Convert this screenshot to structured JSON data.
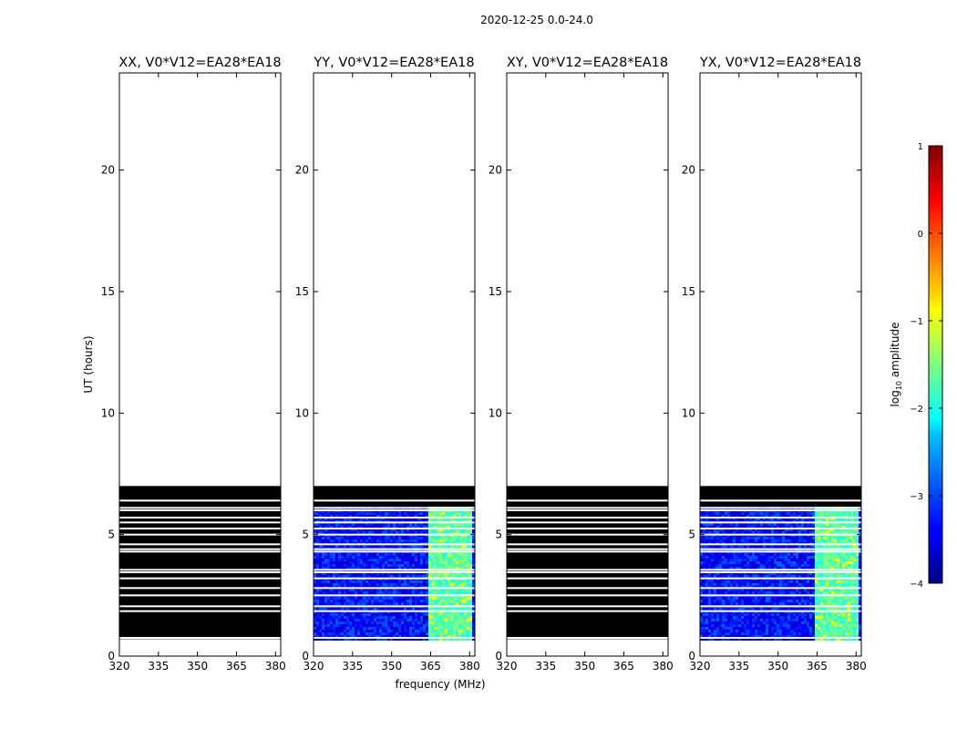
{
  "suptitle": "2020-12-25 0.0-24.0",
  "ylabel": "UT (hours)",
  "xlabel": "frequency (MHz)",
  "colorbar": {
    "label_prefix": "log",
    "label_sub": "10",
    "label_suffix": " amplitude",
    "ticks": [
      1,
      0,
      -1,
      -2,
      -3,
      -4
    ],
    "tick_labels": [
      "1",
      "0",
      "−1",
      "−2",
      "−3",
      "−4"
    ],
    "range": [
      -4,
      1
    ],
    "colormap": "jet"
  },
  "chart_data": [
    {
      "type": "heatmap",
      "title": "XX, V0*V12=EA28*EA18",
      "xlim": [
        320,
        382
      ],
      "ylim": [
        0,
        24
      ],
      "xticks": [
        320,
        335,
        350,
        365,
        380
      ],
      "yticks": [
        0,
        5,
        10,
        15,
        20
      ],
      "data_extent_hours": [
        0.7,
        7.0
      ],
      "fill": "masked-black",
      "gap_rows_hours": [
        0.75,
        1.85,
        2.05,
        2.5,
        2.8,
        3.2,
        3.45,
        3.55,
        4.3,
        4.4,
        4.6,
        5.0,
        5.25,
        5.5,
        5.7,
        6.0,
        6.1,
        6.4
      ]
    },
    {
      "type": "heatmap",
      "title": "YY, V0*V12=EA28*EA18",
      "xlim": [
        320,
        382
      ],
      "ylim": [
        0,
        24
      ],
      "xticks": [
        320,
        335,
        350,
        365,
        380
      ],
      "yticks": [
        0,
        5,
        10,
        15,
        20
      ],
      "data_extent_hours": [
        0.7,
        7.0
      ],
      "fill": "log10-amplitude",
      "background_log_amplitude": -3.3,
      "bright_band_mhz": [
        364,
        380
      ],
      "bright_band_log_amplitude": -1.7,
      "peak_log_amplitude": -0.9,
      "data_top_hours": 6.15,
      "gap_rows_hours": [
        0.75,
        1.85,
        2.05,
        2.5,
        2.8,
        3.2,
        3.45,
        3.55,
        4.3,
        4.4,
        4.6,
        5.0,
        5.25,
        5.5,
        5.7,
        6.0,
        6.1,
        6.4
      ]
    },
    {
      "type": "heatmap",
      "title": "XY, V0*V12=EA28*EA18",
      "xlim": [
        320,
        382
      ],
      "ylim": [
        0,
        24
      ],
      "xticks": [
        320,
        335,
        350,
        365,
        380
      ],
      "yticks": [
        0,
        5,
        10,
        15,
        20
      ],
      "data_extent_hours": [
        0.7,
        7.0
      ],
      "fill": "masked-black",
      "gap_rows_hours": [
        0.75,
        1.85,
        2.05,
        2.5,
        2.8,
        3.2,
        3.45,
        3.55,
        4.3,
        4.4,
        4.6,
        5.0,
        5.25,
        5.5,
        5.7,
        6.0,
        6.1,
        6.4
      ]
    },
    {
      "type": "heatmap",
      "title": "YX, V0*V12=EA28*EA18",
      "xlim": [
        320,
        382
      ],
      "ylim": [
        0,
        24
      ],
      "xticks": [
        320,
        335,
        350,
        365,
        380
      ],
      "yticks": [
        0,
        5,
        10,
        15,
        20
      ],
      "data_extent_hours": [
        0.7,
        7.0
      ],
      "fill": "log10-amplitude",
      "background_log_amplitude": -3.3,
      "bright_band_mhz": [
        364,
        380
      ],
      "bright_band_log_amplitude": -1.7,
      "peak_log_amplitude": -0.9,
      "data_top_hours": 6.15,
      "gap_rows_hours": [
        0.75,
        1.85,
        2.05,
        2.5,
        2.8,
        3.2,
        3.45,
        3.55,
        4.3,
        4.4,
        4.6,
        5.0,
        5.25,
        5.5,
        5.7,
        6.0,
        6.1,
        6.4
      ]
    }
  ]
}
